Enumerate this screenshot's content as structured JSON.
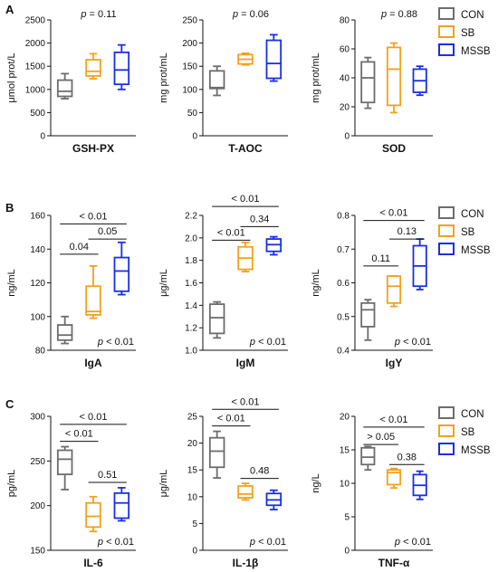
{
  "colors": {
    "CON": "#6d6d6d",
    "SB": "#f5a01a",
    "MSSB": "#1a2fe6"
  },
  "rows": [
    {
      "letter": "A"
    },
    {
      "letter": "B"
    },
    {
      "letter": "C"
    }
  ],
  "legend": {
    "entries": [
      {
        "key": "CON",
        "label": "CON"
      },
      {
        "key": "SB",
        "label": "SB"
      },
      {
        "key": "MSSB",
        "label": "MSSB"
      }
    ]
  },
  "chart_data": [
    {
      "type": "boxplot",
      "xlabel": "GSH-PX",
      "ylabel": "μmol prot/L",
      "ylim": [
        0,
        2500
      ],
      "yticks": [
        "0",
        "500",
        "1000",
        "1500",
        "2000",
        "2500"
      ],
      "ptext_prefix": "p",
      "ptext_value": "= 0.11",
      "groups": [
        {
          "name": "CON",
          "min": 800,
          "q1": 850,
          "median": 960,
          "q3": 1200,
          "max": 1340
        },
        {
          "name": "SB",
          "min": 1230,
          "q1": 1290,
          "median": 1390,
          "q3": 1640,
          "max": 1770
        },
        {
          "name": "MSSB",
          "min": 1000,
          "q1": 1110,
          "median": 1420,
          "q3": 1800,
          "max": 1960
        }
      ],
      "comparisons": []
    },
    {
      "type": "boxplot",
      "xlabel": "T-AOC",
      "ylabel": "mg prot/mL",
      "ylim": [
        0,
        250
      ],
      "yticks": [
        "0",
        "50",
        "100",
        "150",
        "200",
        "250"
      ],
      "ptext_prefix": "p",
      "ptext_value": "= 0.06",
      "groups": [
        {
          "name": "CON",
          "min": 87,
          "q1": 102,
          "median": 104,
          "q3": 140,
          "max": 150
        },
        {
          "name": "SB",
          "min": 153,
          "q1": 155,
          "median": 165,
          "q3": 175,
          "max": 178
        },
        {
          "name": "MSSB",
          "min": 118,
          "q1": 124,
          "median": 156,
          "q3": 206,
          "max": 218
        }
      ],
      "comparisons": []
    },
    {
      "type": "boxplot",
      "xlabel": "SOD",
      "ylabel": "mg prot/mL",
      "ylim": [
        0,
        80
      ],
      "yticks": [
        "0",
        "20",
        "40",
        "60",
        "80"
      ],
      "ptext_prefix": "p",
      "ptext_value": "= 0.88",
      "groups": [
        {
          "name": "CON",
          "min": 19,
          "q1": 23,
          "median": 40,
          "q3": 51,
          "max": 54
        },
        {
          "name": "SB",
          "min": 16,
          "q1": 21,
          "median": 46,
          "q3": 61,
          "max": 64
        },
        {
          "name": "MSSB",
          "min": 28,
          "q1": 30,
          "median": 38,
          "q3": 46,
          "max": 48
        }
      ],
      "comparisons": []
    },
    {
      "type": "boxplot",
      "xlabel": "IgA",
      "ylabel": "ng/mL",
      "ylim": [
        80,
        160
      ],
      "yticks": [
        "80",
        "100",
        "120",
        "140",
        "160"
      ],
      "ptext_prefix": "p",
      "ptext_value": "< 0.01",
      "groups": [
        {
          "name": "CON",
          "min": 84,
          "q1": 86,
          "median": 89,
          "q3": 95,
          "max": 100
        },
        {
          "name": "SB",
          "min": 99,
          "q1": 101,
          "median": 103,
          "q3": 118,
          "max": 130
        },
        {
          "name": "MSSB",
          "min": 113,
          "q1": 115,
          "median": 127,
          "q3": 135,
          "max": 144
        }
      ],
      "comparisons": [
        {
          "from": 0,
          "to": 2,
          "label": "< 0.01",
          "y": 155
        },
        {
          "from": 0,
          "to": 1,
          "label": "0.04",
          "y": 137
        },
        {
          "from": 1,
          "to": 2,
          "label": "0.05",
          "y": 146
        }
      ]
    },
    {
      "type": "boxplot",
      "xlabel": "IgM",
      "ylabel": "μg/mL",
      "ylim": [
        1.0,
        2.2
      ],
      "yticks": [
        "1.0",
        "1.2",
        "1.4",
        "1.6",
        "1.8",
        "2.0",
        "2.2"
      ],
      "ptext_prefix": "p",
      "ptext_value": "< 0.01",
      "groups": [
        {
          "name": "CON",
          "min": 1.11,
          "q1": 1.15,
          "median": 1.29,
          "q3": 1.41,
          "max": 1.43
        },
        {
          "name": "SB",
          "min": 1.7,
          "q1": 1.72,
          "median": 1.82,
          "q3": 1.92,
          "max": 1.96
        },
        {
          "name": "MSSB",
          "min": 1.85,
          "q1": 1.88,
          "median": 1.94,
          "q3": 1.99,
          "max": 2.01
        }
      ],
      "comparisons": [
        {
          "from": 0,
          "to": 2,
          "label": "< 0.01",
          "y": 2.28
        },
        {
          "from": 0,
          "to": 1,
          "label": "< 0.01",
          "y": 1.98
        },
        {
          "from": 1,
          "to": 2,
          "label": "0.34",
          "y": 2.1
        }
      ]
    },
    {
      "type": "boxplot",
      "xlabel": "IgY",
      "ylabel": "ng/mL",
      "ylim": [
        0.4,
        0.8
      ],
      "yticks": [
        "0.4",
        "0.5",
        "0.6",
        "0.7",
        "0.8"
      ],
      "ptext_prefix": "p",
      "ptext_value": "< 0.01",
      "groups": [
        {
          "name": "CON",
          "min": 0.43,
          "q1": 0.47,
          "median": 0.52,
          "q3": 0.54,
          "max": 0.55
        },
        {
          "name": "SB",
          "min": 0.53,
          "q1": 0.54,
          "median": 0.59,
          "q3": 0.62,
          "max": 0.62
        },
        {
          "name": "MSSB",
          "min": 0.58,
          "q1": 0.59,
          "median": 0.65,
          "q3": 0.71,
          "max": 0.73
        }
      ],
      "comparisons": [
        {
          "from": 0,
          "to": 2,
          "label": "< 0.01",
          "y": 0.785
        },
        {
          "from": 0,
          "to": 1,
          "label": "0.11",
          "y": 0.65
        },
        {
          "from": 1,
          "to": 2,
          "label": "0.13",
          "y": 0.73
        }
      ]
    },
    {
      "type": "boxplot",
      "xlabel": "IL-6",
      "ylabel": "pg/mL",
      "ylim": [
        150,
        300
      ],
      "yticks": [
        "150",
        "200",
        "250",
        "300"
      ],
      "ptext_prefix": "p",
      "ptext_value": "< 0.01",
      "groups": [
        {
          "name": "CON",
          "min": 218,
          "q1": 235,
          "median": 252,
          "q3": 262,
          "max": 266
        },
        {
          "name": "SB",
          "min": 171,
          "q1": 176,
          "median": 188,
          "q3": 203,
          "max": 210
        },
        {
          "name": "MSSB",
          "min": 183,
          "q1": 186,
          "median": 203,
          "q3": 214,
          "max": 220
        }
      ],
      "comparisons": [
        {
          "from": 0,
          "to": 2,
          "label": "< 0.01",
          "y": 291
        },
        {
          "from": 0,
          "to": 1,
          "label": "< 0.01",
          "y": 272
        },
        {
          "from": 1,
          "to": 2,
          "label": "0.51",
          "y": 226
        }
      ]
    },
    {
      "type": "boxplot",
      "xlabel": "IL-1β",
      "ylabel": "μg/mL",
      "ylim": [
        0,
        25
      ],
      "yticks": [
        "0",
        "5",
        "10",
        "15",
        "20",
        "25"
      ],
      "ptext_prefix": "p",
      "ptext_value": "< 0.01",
      "groups": [
        {
          "name": "CON",
          "min": 13.5,
          "q1": 15.5,
          "median": 18.5,
          "q3": 21,
          "max": 22.2
        },
        {
          "name": "SB",
          "min": 9.4,
          "q1": 9.8,
          "median": 10.5,
          "q3": 12,
          "max": 12.5
        },
        {
          "name": "MSSB",
          "min": 7.6,
          "q1": 8.4,
          "median": 9.4,
          "q3": 10.6,
          "max": 11.2
        }
      ],
      "comparisons": [
        {
          "from": 0,
          "to": 2,
          "label": "< 0.01",
          "y": 26.3
        },
        {
          "from": 0,
          "to": 1,
          "label": "< 0.01",
          "y": 23.2
        },
        {
          "from": 1,
          "to": 2,
          "label": "0.48",
          "y": 13.4
        }
      ]
    },
    {
      "type": "boxplot",
      "xlabel": "TNF-α",
      "ylabel": "ng/L",
      "ylim": [
        0,
        20
      ],
      "yticks": [
        "0",
        "5",
        "10",
        "15",
        "20"
      ],
      "ptext_prefix": "p",
      "ptext_value": "< 0.01",
      "groups": [
        {
          "name": "CON",
          "min": 12,
          "q1": 12.8,
          "median": 13.9,
          "q3": 15.3,
          "max": 15.5
        },
        {
          "name": "SB",
          "min": 9.3,
          "q1": 9.8,
          "median": 11.6,
          "q3": 12,
          "max": 12.2
        },
        {
          "name": "MSSB",
          "min": 7.6,
          "q1": 8.2,
          "median": 9.7,
          "q3": 11.3,
          "max": 11.8
        }
      ],
      "comparisons": [
        {
          "from": 0,
          "to": 2,
          "label": "< 0.01",
          "y": 18.4
        },
        {
          "from": 0,
          "to": 1,
          "label": "> 0.05",
          "y": 15.8
        },
        {
          "from": 1,
          "to": 2,
          "label": "0.38",
          "y": 12.8
        }
      ]
    }
  ]
}
